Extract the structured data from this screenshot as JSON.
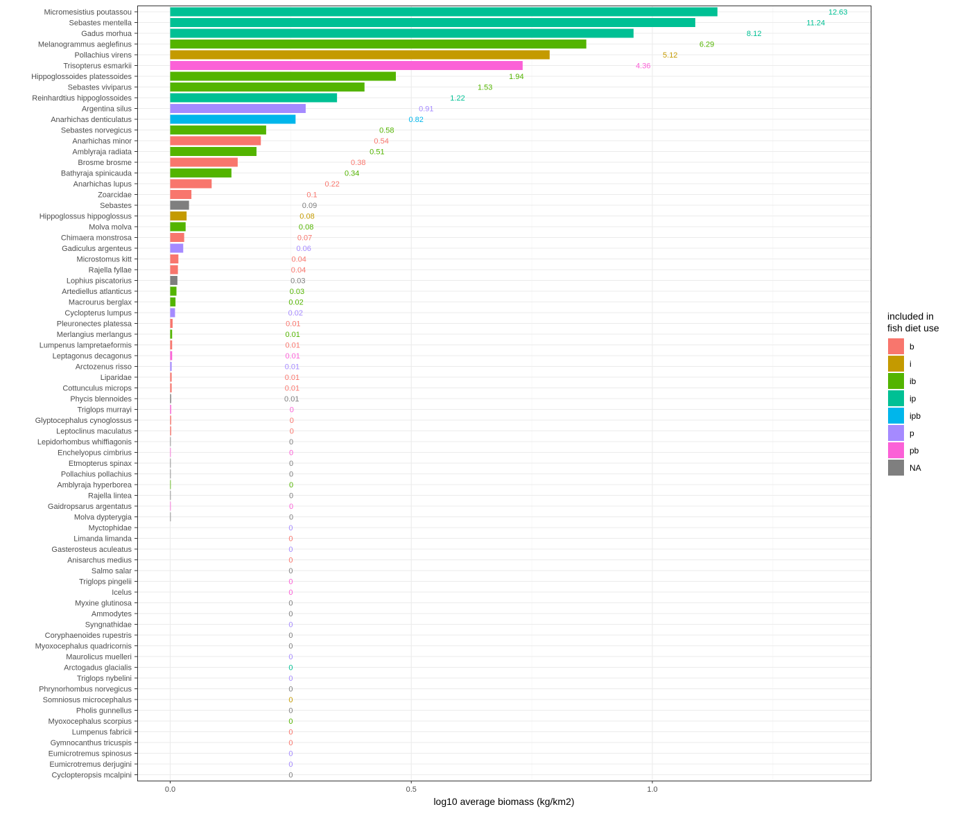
{
  "chart_data": {
    "type": "bar",
    "orientation": "horizontal",
    "xlabel": "log10 average biomass (kg/km2)",
    "ylabel": "",
    "xlim": [
      -0.07,
      1.45
    ],
    "x_ticks": [
      {
        "value": 0.0,
        "label": "0.0"
      },
      {
        "value": 0.5,
        "label": "0.5"
      },
      {
        "value": 1.0,
        "label": "1.0"
      }
    ],
    "grid": true,
    "label_offset_note": "",
    "legend": {
      "title_lines": [
        "included in",
        "fish diet use"
      ],
      "position": "right",
      "entries": [
        {
          "key": "b",
          "label": "b",
          "color": "#F8766D"
        },
        {
          "key": "i",
          "label": "i",
          "color": "#C49A00"
        },
        {
          "key": "ib",
          "label": "ib",
          "color": "#53B400"
        },
        {
          "key": "ip",
          "label": "ip",
          "color": "#00C094"
        },
        {
          "key": "ipb",
          "label": "ipb",
          "color": "#00B6EB"
        },
        {
          "key": "p",
          "label": "p",
          "color": "#A58AFF"
        },
        {
          "key": "pb",
          "label": "pb",
          "color": "#FB61D7"
        },
        {
          "key": "NA",
          "label": "NA",
          "color": "#7F7F7F"
        }
      ]
    },
    "bars": [
      {
        "category": "Micromesistius poutassou",
        "value": 1.135,
        "label": "12.63",
        "group": "ip"
      },
      {
        "category": "Sebastes mentella",
        "value": 1.089,
        "label": "11.24",
        "group": "ip"
      },
      {
        "category": "Gadus morhua",
        "value": 0.961,
        "label": "8.12",
        "group": "ip"
      },
      {
        "category": "Melanogrammus aeglefinus",
        "value": 0.863,
        "label": "6.29",
        "group": "ib"
      },
      {
        "category": "Pollachius virens",
        "value": 0.787,
        "label": "5.12",
        "group": "i"
      },
      {
        "category": "Trisopterus esmarkii",
        "value": 0.731,
        "label": "4.36",
        "group": "pb"
      },
      {
        "category": "Hippoglossoides platessoides",
        "value": 0.468,
        "label": "1.94",
        "group": "ib"
      },
      {
        "category": "Sebastes viviparus",
        "value": 0.403,
        "label": "1.53",
        "group": "ib"
      },
      {
        "category": "Reinhardtius hippoglossoides",
        "value": 0.346,
        "label": "1.22",
        "group": "ip"
      },
      {
        "category": "Argentina silus",
        "value": 0.281,
        "label": "0.91",
        "group": "p"
      },
      {
        "category": "Anarhichas denticulatus",
        "value": 0.26,
        "label": "0.82",
        "group": "ipb"
      },
      {
        "category": "Sebastes norvegicus",
        "value": 0.199,
        "label": "0.58",
        "group": "ib"
      },
      {
        "category": "Anarhichas minor",
        "value": 0.188,
        "label": "0.54",
        "group": "b"
      },
      {
        "category": "Amblyraja radiata",
        "value": 0.179,
        "label": "0.51",
        "group": "ib"
      },
      {
        "category": "Brosme brosme",
        "value": 0.14,
        "label": "0.38",
        "group": "b"
      },
      {
        "category": "Bathyraja spinicauda",
        "value": 0.127,
        "label": "0.34",
        "group": "ib"
      },
      {
        "category": "Anarhichas lupus",
        "value": 0.086,
        "label": "0.22",
        "group": "b"
      },
      {
        "category": "Zoarcidae",
        "value": 0.044,
        "label": "0.1",
        "group": "b"
      },
      {
        "category": "Sebastes",
        "value": 0.039,
        "label": "0.09",
        "group": "NA"
      },
      {
        "category": "Hippoglossus hippoglossus",
        "value": 0.034,
        "label": "0.08",
        "group": "i"
      },
      {
        "category": "Molva molva",
        "value": 0.032,
        "label": "0.08",
        "group": "ib"
      },
      {
        "category": "Chimaera monstrosa",
        "value": 0.029,
        "label": "0.07",
        "group": "b"
      },
      {
        "category": "Gadiculus argenteus",
        "value": 0.027,
        "label": "0.06",
        "group": "p"
      },
      {
        "category": "Microstomus kitt",
        "value": 0.017,
        "label": "0.04",
        "group": "b"
      },
      {
        "category": "Rajella fyllae",
        "value": 0.016,
        "label": "0.04",
        "group": "b"
      },
      {
        "category": "Lophius piscatorius",
        "value": 0.015,
        "label": "0.03",
        "group": "NA"
      },
      {
        "category": "Artediellus atlanticus",
        "value": 0.013,
        "label": "0.03",
        "group": "ib"
      },
      {
        "category": "Macrourus berglax",
        "value": 0.011,
        "label": "0.02",
        "group": "ib"
      },
      {
        "category": "Cyclopterus lumpus",
        "value": 0.01,
        "label": "0.02",
        "group": "p"
      },
      {
        "category": "Pleuronectes platessa",
        "value": 0.005,
        "label": "0.01",
        "group": "b"
      },
      {
        "category": "Merlangius merlangus",
        "value": 0.004,
        "label": "0.01",
        "group": "ib"
      },
      {
        "category": "Lumpenus lampretaeformis",
        "value": 0.004,
        "label": "0.01",
        "group": "b"
      },
      {
        "category": "Leptagonus decagonus",
        "value": 0.004,
        "label": "0.01",
        "group": "pb"
      },
      {
        "category": "Arctozenus risso",
        "value": 0.003,
        "label": "0.01",
        "group": "p"
      },
      {
        "category": "Liparidae",
        "value": 0.003,
        "label": "0.01",
        "group": "b"
      },
      {
        "category": "Cottunculus microps",
        "value": 0.003,
        "label": "0.01",
        "group": "b"
      },
      {
        "category": "Phycis blennoides",
        "value": 0.002,
        "label": "0.01",
        "group": "NA"
      },
      {
        "category": "Triglops murrayi",
        "value": 0.002,
        "label": "0",
        "group": "pb"
      },
      {
        "category": "Glyptocephalus cynoglossus",
        "value": 0.002,
        "label": "0",
        "group": "b"
      },
      {
        "category": "Leptoclinus maculatus",
        "value": 0.002,
        "label": "0",
        "group": "b"
      },
      {
        "category": "Lepidorhombus whiffiagonis",
        "value": 0.001,
        "label": "0",
        "group": "NA"
      },
      {
        "category": "Enchelyopus cimbrius",
        "value": 0.001,
        "label": "0",
        "group": "pb"
      },
      {
        "category": "Etmopterus spinax",
        "value": 0.001,
        "label": "0",
        "group": "NA"
      },
      {
        "category": "Pollachius pollachius",
        "value": 0.001,
        "label": "0",
        "group": "NA"
      },
      {
        "category": "Amblyraja hyperborea",
        "value": 0.001,
        "label": "0",
        "group": "ib"
      },
      {
        "category": "Rajella lintea",
        "value": 0.001,
        "label": "0",
        "group": "NA"
      },
      {
        "category": "Gaidropsarus argentatus",
        "value": 0.001,
        "label": "0",
        "group": "pb"
      },
      {
        "category": "Molva dypterygia",
        "value": 0.001,
        "label": "0",
        "group": "NA"
      },
      {
        "category": "Myctophidae",
        "value": 0,
        "label": "0",
        "group": "p"
      },
      {
        "category": "Limanda limanda",
        "value": 0,
        "label": "0",
        "group": "b"
      },
      {
        "category": "Gasterosteus aculeatus",
        "value": 0,
        "label": "0",
        "group": "p"
      },
      {
        "category": "Anisarchus medius",
        "value": 0,
        "label": "0",
        "group": "b"
      },
      {
        "category": "Salmo salar",
        "value": 0,
        "label": "0",
        "group": "NA"
      },
      {
        "category": "Triglops pingelii",
        "value": 0,
        "label": "0",
        "group": "pb"
      },
      {
        "category": "Icelus",
        "value": 0,
        "label": "0",
        "group": "pb"
      },
      {
        "category": "Myxine glutinosa",
        "value": 0,
        "label": "0",
        "group": "NA"
      },
      {
        "category": "Ammodytes",
        "value": 0,
        "label": "0",
        "group": "NA"
      },
      {
        "category": "Syngnathidae",
        "value": 0,
        "label": "0",
        "group": "p"
      },
      {
        "category": "Coryphaenoides rupestris",
        "value": 0,
        "label": "0",
        "group": "NA"
      },
      {
        "category": "Myoxocephalus quadricornis",
        "value": 0,
        "label": "0",
        "group": "NA"
      },
      {
        "category": "Maurolicus muelleri",
        "value": 0,
        "label": "0",
        "group": "p"
      },
      {
        "category": "Arctogadus glacialis",
        "value": 0,
        "label": "0",
        "group": "ip"
      },
      {
        "category": "Triglops nybelini",
        "value": 0,
        "label": "0",
        "group": "p"
      },
      {
        "category": "Phrynorhombus norvegicus",
        "value": 0,
        "label": "0",
        "group": "NA"
      },
      {
        "category": "Somniosus microcephalus",
        "value": 0,
        "label": "0",
        "group": "i"
      },
      {
        "category": "Pholis gunnellus",
        "value": 0,
        "label": "0",
        "group": "NA"
      },
      {
        "category": "Myoxocephalus scorpius",
        "value": 0,
        "label": "0",
        "group": "ib"
      },
      {
        "category": "Lumpenus fabricii",
        "value": 0,
        "label": "0",
        "group": "b"
      },
      {
        "category": "Gymnocanthus tricuspis",
        "value": 0,
        "label": "0",
        "group": "b"
      },
      {
        "category": "Eumicrotremus spinosus",
        "value": 0,
        "label": "0",
        "group": "p"
      },
      {
        "category": "Eumicrotremus derjugini",
        "value": 0,
        "label": "0",
        "group": "p"
      },
      {
        "category": "Cyclopteropsis mcalpini",
        "value": 0,
        "label": "0",
        "group": "NA"
      }
    ]
  }
}
